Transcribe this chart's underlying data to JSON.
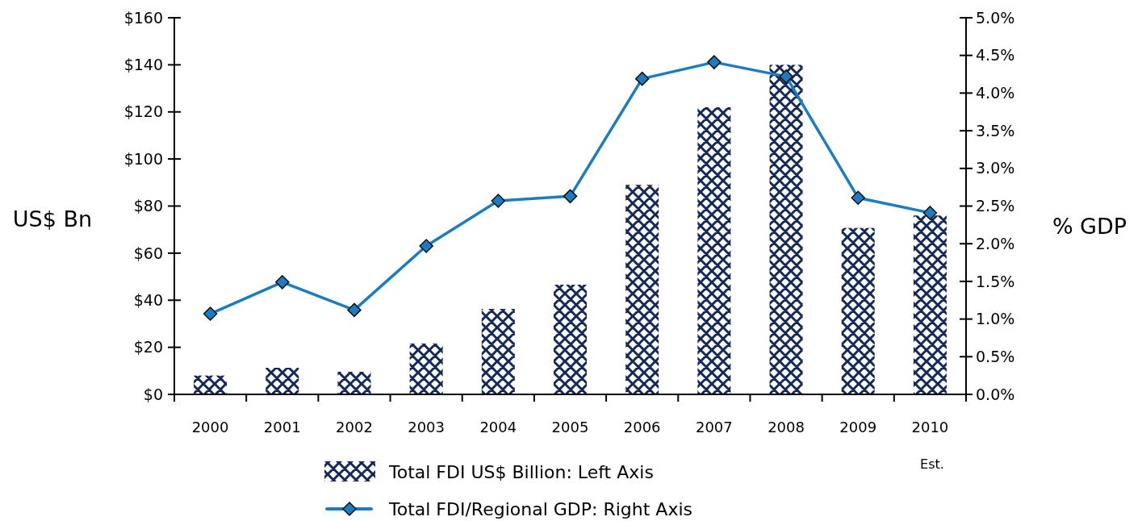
{
  "chart_data": {
    "type": "bar",
    "categories": [
      "2000",
      "2001",
      "2002",
      "2003",
      "2004",
      "2005",
      "2006",
      "2007",
      "2008",
      "2009",
      "2010"
    ],
    "ylabel": "US$ Bn",
    "y2label": "% GDP",
    "series": [
      {
        "name": "Total FDI US$ Billion: Left Axis",
        "color": "#14295a",
        "values": [
          8,
          11.3,
          9.6,
          21.6,
          36.3,
          46.6,
          89,
          122,
          140,
          70.7,
          76
        ]
      },
      {
        "name": "Total FDI/Regional GDP: Right Axis",
        "type": "line",
        "axis": "y2",
        "color": "#1a7dc4",
        "values": [
          1.07,
          1.49,
          1.12,
          1.97,
          2.57,
          2.63,
          4.19,
          4.41,
          4.22,
          2.61,
          2.41
        ]
      }
    ],
    "ylim": [
      0,
      160
    ],
    "yticks": [
      {
        "value": 0,
        "label": "$0"
      },
      {
        "value": 20,
        "label": "$20"
      },
      {
        "value": 40,
        "label": "$40"
      },
      {
        "value": 60,
        "label": "$60"
      },
      {
        "value": 80,
        "label": "$80"
      },
      {
        "value": 100,
        "label": "$100"
      },
      {
        "value": 120,
        "label": "$120"
      },
      {
        "value": 140,
        "label": "$140"
      },
      {
        "value": 160,
        "label": "$160"
      }
    ],
    "y2lim": [
      0,
      5
    ],
    "y2ticks": [
      {
        "value": 0,
        "label": "0.0%"
      },
      {
        "value": 0.5,
        "label": "0.5%"
      },
      {
        "value": 1,
        "label": "1.0%"
      },
      {
        "value": 1.5,
        "label": "1.5%"
      },
      {
        "value": 2,
        "label": "2.0%"
      },
      {
        "value": 2.5,
        "label": "2.5%"
      },
      {
        "value": 3,
        "label": "3.0%"
      },
      {
        "value": 3.5,
        "label": "3.5%"
      },
      {
        "value": 4,
        "label": "4.0%"
      },
      {
        "value": 4.5,
        "label": "4.5%"
      },
      {
        "value": 5,
        "label": "5.0%"
      }
    ],
    "annotations": [
      "Est."
    ],
    "marker": "diamond",
    "line_style": "solid",
    "grid": false,
    "legend": "bottom"
  }
}
